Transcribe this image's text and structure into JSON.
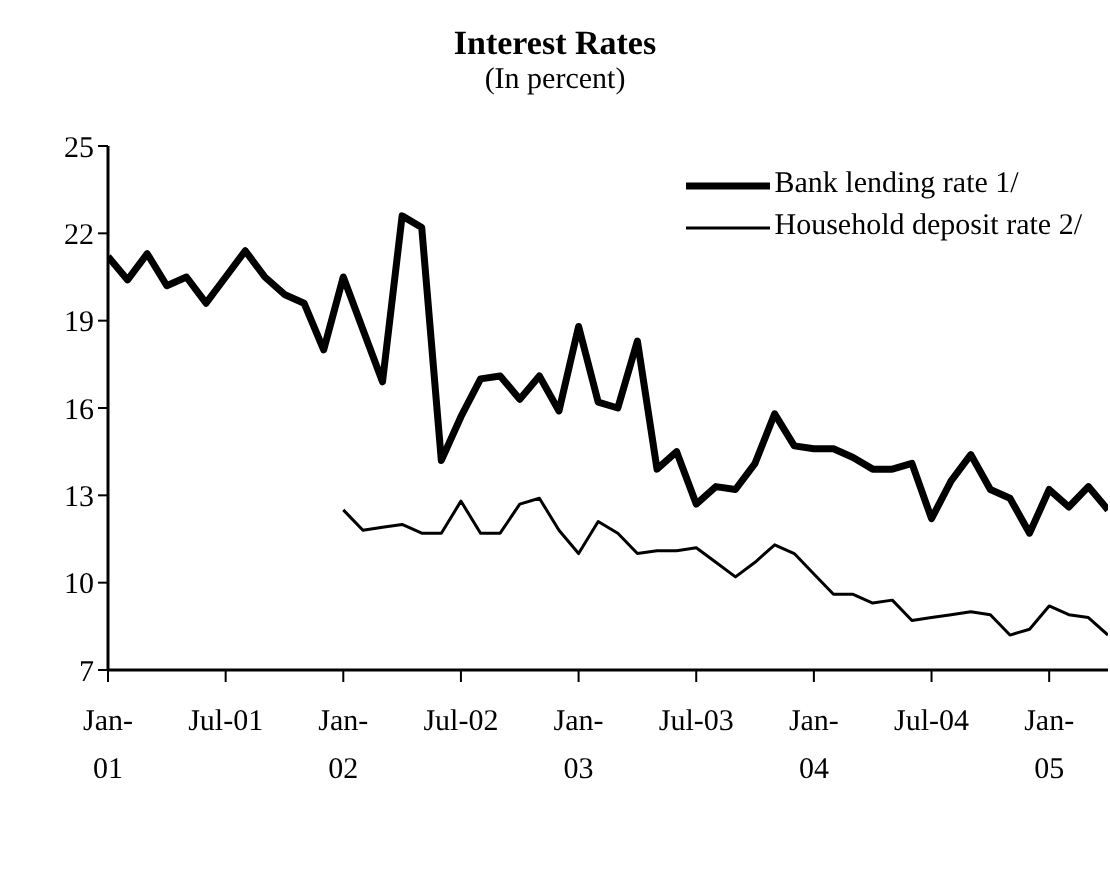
{
  "chart_data": {
    "type": "line",
    "title": "Interest Rates",
    "subtitle": "(In percent)",
    "x": [
      "2001-01",
      "2001-02",
      "2001-03",
      "2001-04",
      "2001-05",
      "2001-06",
      "2001-07",
      "2001-08",
      "2001-09",
      "2001-10",
      "2001-11",
      "2001-12",
      "2002-01",
      "2002-02",
      "2002-03",
      "2002-04",
      "2002-05",
      "2002-06",
      "2002-07",
      "2002-08",
      "2002-09",
      "2002-10",
      "2002-11",
      "2002-12",
      "2003-01",
      "2003-02",
      "2003-03",
      "2003-04",
      "2003-05",
      "2003-06",
      "2003-07",
      "2003-08",
      "2003-09",
      "2003-10",
      "2003-11",
      "2003-12",
      "2004-01",
      "2004-02",
      "2004-03",
      "2004-04",
      "2004-05",
      "2004-06",
      "2004-07",
      "2004-08",
      "2004-09",
      "2004-10",
      "2004-11",
      "2004-12",
      "2005-01",
      "2005-02",
      "2005-03",
      "2005-04"
    ],
    "series": [
      {
        "name": "Bank lending rate 1/",
        "color": "#000000",
        "values": [
          21.2,
          20.4,
          21.3,
          20.2,
          20.5,
          19.6,
          20.5,
          21.4,
          20.5,
          19.9,
          19.6,
          18.0,
          20.5,
          18.7,
          16.9,
          22.6,
          22.2,
          14.2,
          15.7,
          17.0,
          17.1,
          16.3,
          17.1,
          15.9,
          18.8,
          16.2,
          16.0,
          18.3,
          13.9,
          14.5,
          12.7,
          13.3,
          13.2,
          14.1,
          15.8,
          14.7,
          14.6,
          14.6,
          14.3,
          13.9,
          13.9,
          14.1,
          12.2,
          13.5,
          14.4,
          13.2,
          12.9,
          11.7,
          13.2,
          12.6,
          13.3,
          12.5
        ]
      },
      {
        "name": "Household deposit rate 2/",
        "color": "#000000",
        "values": [
          null,
          null,
          null,
          null,
          null,
          null,
          null,
          null,
          null,
          null,
          null,
          null,
          12.5,
          11.8,
          11.9,
          12.0,
          11.7,
          11.7,
          12.8,
          11.7,
          11.7,
          12.7,
          12.9,
          11.8,
          11.0,
          12.1,
          11.7,
          11.0,
          11.1,
          11.1,
          11.2,
          10.7,
          10.2,
          10.7,
          11.3,
          11.0,
          10.3,
          9.6,
          9.6,
          9.3,
          9.4,
          8.7,
          8.8,
          8.9,
          9.0,
          8.9,
          8.2,
          8.4,
          9.2,
          8.9,
          8.8,
          8.2
        ]
      }
    ],
    "xlim": [
      "2001-01",
      "2005-04"
    ],
    "xticks": [
      {
        "value": "2001-01",
        "label": "Jan-\n01"
      },
      {
        "value": "2001-07",
        "label": "Jul-01"
      },
      {
        "value": "2002-01",
        "label": "Jan-\n02"
      },
      {
        "value": "2002-07",
        "label": "Jul-02"
      },
      {
        "value": "2003-01",
        "label": "Jan-\n03"
      },
      {
        "value": "2003-07",
        "label": "Jul-03"
      },
      {
        "value": "2004-01",
        "label": "Jan-\n04"
      },
      {
        "value": "2004-07",
        "label": "Jul-04"
      },
      {
        "value": "2005-01",
        "label": "Jan-\n05"
      }
    ],
    "ylim": [
      7,
      25
    ],
    "yticks": [
      7,
      10,
      13,
      16,
      19,
      22,
      25
    ],
    "legend": "top right",
    "marker": "none",
    "line_style": "solid"
  }
}
